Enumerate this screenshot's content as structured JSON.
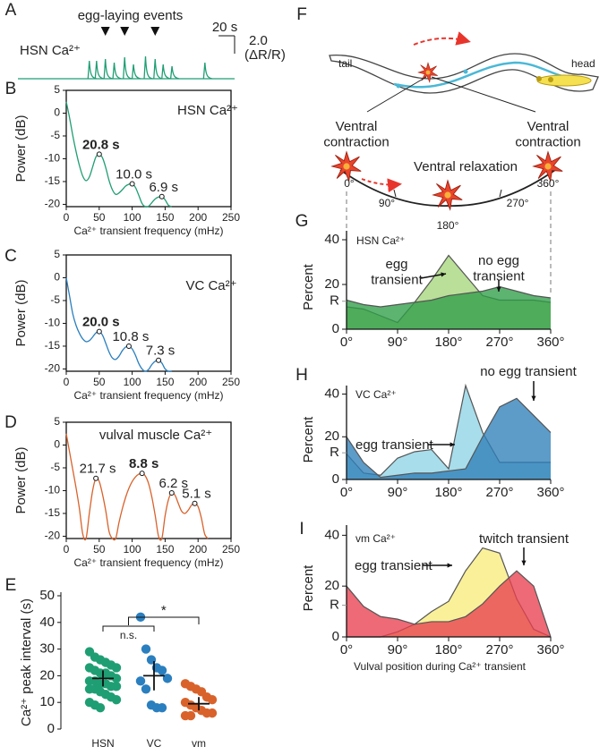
{
  "diagram": {
    "panel": "F",
    "tail": "tail",
    "head": "head",
    "contraction_left": "Ventral contraction",
    "contraction_right": "Ventral contraction",
    "relaxation": "Ventral relaxation",
    "angles": [
      "0°",
      "90°",
      "180°",
      "270°",
      "360°"
    ]
  },
  "chart_data": [
    {
      "type": "trace",
      "panel": "A",
      "annotation": "egg-laying events",
      "label": "HSN Ca²⁺",
      "color": "#1f9e74",
      "xlim": [
        0,
        270
      ],
      "x": [
        89,
        98,
        109,
        120,
        133,
        144,
        159,
        171,
        181,
        192,
        233
      ],
      "values": [
        2.0,
        2.0,
        2.2,
        1.8,
        2.4,
        1.6,
        2.5,
        2.2,
        1.6,
        1.4,
        1.8
      ],
      "events": [
        109,
        133,
        171
      ],
      "scale_x": {
        "value": 20,
        "label": "20 s"
      },
      "scale_y": {
        "value": 2.0,
        "label": "2.0"
      },
      "scale_y_unit": "(ΔR/R)"
    },
    {
      "type": "line",
      "panel": "B",
      "title": "HSN Ca²⁺",
      "color": "#1f9e74",
      "xlabel": "Ca²⁺ transient frequency (mHz)",
      "ylabel": "Power (dB)",
      "xlim": [
        0,
        250
      ],
      "ylim": [
        -20.5,
        5
      ],
      "xticks": [
        0,
        50,
        100,
        150,
        200,
        250
      ],
      "yticks": [
        5,
        0,
        -5,
        -10,
        -15,
        -20
      ],
      "x": [
        0,
        5,
        10,
        15,
        20,
        25,
        30,
        35,
        40,
        45,
        50,
        55,
        60,
        65,
        70,
        75,
        80,
        85,
        90,
        95,
        100,
        105,
        110,
        115,
        120,
        125,
        130,
        135,
        140,
        145,
        150,
        155,
        160
      ],
      "values": [
        2.5,
        -1,
        -5,
        -8.5,
        -11.5,
        -13.8,
        -14.8,
        -14,
        -11.8,
        -9.6,
        -9,
        -9.8,
        -12,
        -14.8,
        -16.8,
        -17.8,
        -17.5,
        -16.8,
        -16,
        -15.6,
        -15.5,
        -16.3,
        -18,
        -19.8,
        -20.5,
        -20.4,
        -19.6,
        -18.8,
        -18.4,
        -18.3,
        -19,
        -20.2,
        -20.5
      ],
      "annotations": [
        {
          "x": 50,
          "y": -9,
          "label": "20.8 s",
          "color": "#1f9e74"
        },
        {
          "x": 100,
          "y": -15.5,
          "label": "10.0 s",
          "color": "#222222"
        },
        {
          "x": 145,
          "y": -18.3,
          "label": "6.9 s",
          "color": "#222222"
        }
      ]
    },
    {
      "type": "line",
      "panel": "C",
      "title": "VC Ca²⁺",
      "color": "#2a7fbf",
      "xlabel": "Ca²⁺ transient frequency (mHz)",
      "ylabel": "Power (dB)",
      "xlim": [
        0,
        250
      ],
      "ylim": [
        -20.5,
        5
      ],
      "xticks": [
        0,
        50,
        100,
        150,
        200,
        250
      ],
      "yticks": [
        5,
        0,
        -5,
        -10,
        -15,
        -20
      ],
      "x": [
        0,
        5,
        10,
        15,
        20,
        25,
        30,
        35,
        40,
        45,
        50,
        55,
        60,
        65,
        70,
        75,
        80,
        85,
        90,
        95,
        100,
        105,
        110,
        115,
        120,
        125,
        130,
        135,
        140,
        145,
        150,
        155,
        160
      ],
      "values": [
        0,
        -4,
        -8,
        -10.5,
        -12.2,
        -13.4,
        -14,
        -13.8,
        -13,
        -12.1,
        -11.8,
        -12.6,
        -14.4,
        -16.3,
        -17.6,
        -17.9,
        -17.2,
        -16,
        -15.2,
        -15,
        -15.6,
        -17,
        -18.8,
        -20,
        -20.5,
        -20.1,
        -19,
        -18.3,
        -18.1,
        -18.7,
        -20,
        -20.5,
        -20.5
      ],
      "annotations": [
        {
          "x": 50,
          "y": -11.8,
          "label": "20.0 s",
          "color": "#2a7fbf"
        },
        {
          "x": 95,
          "y": -15,
          "label": "10.8 s",
          "color": "#222222"
        },
        {
          "x": 140,
          "y": -18.1,
          "label": "7.3 s",
          "color": "#222222"
        }
      ]
    },
    {
      "type": "line",
      "panel": "D",
      "title": "vulval muscle Ca²⁺",
      "color": "#d9622b",
      "xlabel": "Ca²⁺ transient frequency (mHz)",
      "ylabel": "Power (dB)",
      "xlim": [
        0,
        250
      ],
      "ylim": [
        -20.5,
        5
      ],
      "xticks": [
        0,
        50,
        100,
        150,
        200,
        250
      ],
      "yticks": [
        5,
        0,
        -5,
        -10,
        -15,
        -20
      ],
      "x": [
        0,
        5,
        10,
        15,
        20,
        25,
        30,
        35,
        40,
        45,
        50,
        55,
        60,
        65,
        70,
        75,
        80,
        85,
        90,
        95,
        100,
        105,
        110,
        115,
        120,
        125,
        130,
        135,
        140,
        145,
        150,
        155,
        160,
        165,
        170,
        175,
        180,
        185,
        190,
        195,
        200,
        205,
        210,
        215
      ],
      "values": [
        2.5,
        -1.5,
        -5.5,
        -9.5,
        -14,
        -19.5,
        -20.5,
        -15,
        -10,
        -7.3,
        -8,
        -10.8,
        -14.5,
        -19,
        -20.5,
        -20.5,
        -17,
        -14,
        -11.5,
        -9.5,
        -8,
        -7,
        -6.4,
        -6.2,
        -6.8,
        -8.5,
        -11.5,
        -15.5,
        -20,
        -20.5,
        -15.5,
        -12,
        -10.5,
        -11,
        -12.8,
        -14.5,
        -15,
        -14.3,
        -13.2,
        -12.8,
        -13.5,
        -16,
        -19.5,
        -20.5
      ],
      "annotations": [
        {
          "x": 45,
          "y": -7.3,
          "label": "21.7 s",
          "color": "#222222"
        },
        {
          "x": 115,
          "y": -6.2,
          "label": "8.8 s",
          "color": "#d9622b"
        },
        {
          "x": 160,
          "y": -10.5,
          "label": "6.2 s",
          "color": "#222222"
        },
        {
          "x": 195,
          "y": -12.8,
          "label": "5.1 s",
          "color": "#222222"
        }
      ]
    },
    {
      "type": "dot",
      "panel": "E",
      "ylabel": "Ca²⁺ peak interval (s)",
      "ylim": [
        0,
        50
      ],
      "yticks": [
        0,
        10,
        20,
        30,
        40,
        50
      ],
      "stats": [
        "n.s.",
        "*"
      ],
      "series": [
        {
          "name": "HSN",
          "color": "#1f9e74",
          "values": [
            29,
            27,
            26,
            25,
            24,
            23,
            23,
            22,
            21,
            21,
            20,
            19,
            18,
            18,
            17,
            17,
            16,
            16,
            15,
            15,
            14,
            13,
            12,
            11,
            10,
            9,
            8
          ],
          "mean": 19,
          "error": 3
        },
        {
          "name": "VC",
          "color": "#2a7fbf",
          "values": [
            42,
            30,
            26,
            23,
            22,
            19,
            18,
            15,
            9,
            8,
            8
          ],
          "mean": 20,
          "error": 5.5
        },
        {
          "name": "vm",
          "color": "#d9622b",
          "values": [
            17,
            16,
            15,
            14,
            12,
            11,
            10,
            9,
            8,
            7,
            6,
            6,
            5,
            5
          ],
          "mean": 9.5,
          "error": 2.5
        }
      ]
    },
    {
      "type": "area",
      "panel": "G",
      "title": "HSN Ca²⁺",
      "title_color": "#1f9e74",
      "ylabel": "Percent",
      "xlim": [
        0,
        360
      ],
      "ylim": [
        0,
        44
      ],
      "yticks": [
        0,
        {
          "value": 12.5,
          "label": "R"
        },
        20,
        40
      ],
      "xticks": [
        {
          "value": 0,
          "label": "0°"
        },
        {
          "value": 90,
          "label": "90°"
        },
        {
          "value": 180,
          "label": "180°"
        },
        {
          "value": 270,
          "label": "270°"
        },
        {
          "value": 360,
          "label": "360°"
        }
      ],
      "x": [
        0,
        30,
        60,
        90,
        120,
        150,
        180,
        210,
        240,
        270,
        300,
        330,
        360
      ],
      "series": [
        {
          "name": "egg transient",
          "color": "#a5d67c",
          "values": [
            10,
            9,
            6,
            3,
            12,
            22,
            33,
            24,
            15,
            13,
            13,
            13,
            12
          ]
        },
        {
          "name": "no egg transient",
          "color": "#2f9e48",
          "values": [
            13,
            11,
            10,
            11,
            12,
            13,
            15,
            16,
            17,
            19,
            17,
            15,
            14
          ]
        }
      ]
    },
    {
      "type": "area",
      "panel": "H",
      "title": "VC Ca²⁺",
      "title_color": "#2a7fbf",
      "ylabel": "Percent",
      "xlim": [
        0,
        360
      ],
      "ylim": [
        0,
        44
      ],
      "yticks": [
        0,
        {
          "value": 12.5,
          "label": "R"
        },
        20,
        40
      ],
      "xticks": [
        {
          "value": 0,
          "label": "0°"
        },
        {
          "value": 90,
          "label": "90°"
        },
        {
          "value": 180,
          "label": "180°"
        },
        {
          "value": 270,
          "label": "270°"
        },
        {
          "value": 360,
          "label": "360°"
        }
      ],
      "x": [
        0,
        30,
        60,
        90,
        120,
        150,
        180,
        210,
        240,
        270,
        300,
        330,
        360
      ],
      "series": [
        {
          "name": "egg transient",
          "color": "#8fd3e6",
          "values": [
            12,
            3,
            2,
            10,
            13,
            14,
            5,
            44,
            22,
            8,
            8,
            8,
            8
          ]
        },
        {
          "name": "no egg transient",
          "color": "#2f7fb8",
          "values": [
            20,
            8,
            1,
            2,
            3,
            3,
            4,
            5,
            20,
            34,
            38,
            30,
            22
          ]
        }
      ]
    },
    {
      "type": "area",
      "panel": "I",
      "title": "vm Ca²⁺",
      "title_color": "#d9622b",
      "ylabel": "Percent",
      "xlabel": "Vulval position during Ca²⁺ transient",
      "xlim": [
        0,
        360
      ],
      "ylim": [
        0,
        44
      ],
      "yticks": [
        0,
        {
          "value": 12.5,
          "label": "R"
        },
        20,
        40
      ],
      "xticks": [
        {
          "value": 0,
          "label": "0°"
        },
        {
          "value": 90,
          "label": "90°"
        },
        {
          "value": 180,
          "label": "180°"
        },
        {
          "value": 270,
          "label": "270°"
        },
        {
          "value": 360,
          "label": "360°"
        }
      ],
      "x": [
        0,
        30,
        60,
        90,
        120,
        150,
        180,
        210,
        240,
        270,
        300,
        330,
        360
      ],
      "series": [
        {
          "name": "egg transient",
          "color": "#f8ec7e",
          "values": [
            0,
            0,
            0,
            2,
            5,
            10,
            14,
            26,
            35,
            33,
            15,
            3,
            0
          ]
        },
        {
          "name": "twitch transient",
          "color": "#e8404f",
          "values": [
            20,
            12,
            8,
            7,
            5,
            6,
            6,
            8,
            13,
            20,
            26,
            20,
            0
          ]
        }
      ]
    }
  ]
}
